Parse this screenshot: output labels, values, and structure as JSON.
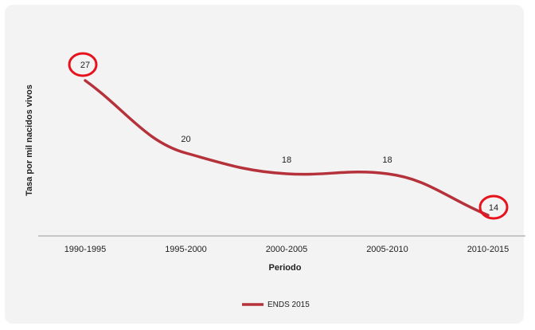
{
  "chart_data": {
    "type": "line",
    "categories": [
      "1990-1995",
      "1995-2000",
      "2000-2005",
      "2005-2010",
      "2010-2015"
    ],
    "series": [
      {
        "name": "ENDS 2015",
        "values": [
          27,
          20,
          18,
          18,
          14
        ],
        "color": "#b5323b"
      }
    ],
    "xlabel": "Periodo",
    "ylabel": "Tasa por mil nacidos vivos",
    "ylim": [
      12,
      28
    ],
    "grid": false,
    "legend": "bottom-center",
    "highlighted_points": [
      "1990-1995",
      "2010-2015"
    ],
    "highlight_color": "#e8121c"
  }
}
